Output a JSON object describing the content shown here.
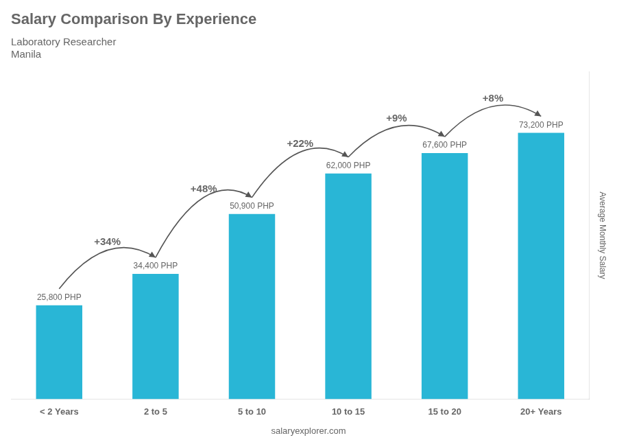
{
  "chart_data": {
    "type": "bar",
    "title": "Salary Comparison By Experience",
    "subtitle": [
      "Laboratory Researcher",
      "Manila"
    ],
    "categories": [
      "< 2 Years",
      "2 to 5",
      "5 to 10",
      "10 to 15",
      "15 to 20",
      "20+ Years"
    ],
    "values": [
      25800,
      34400,
      50900,
      62000,
      67600,
      73200
    ],
    "value_labels": [
      "25,800 PHP",
      "34,400 PHP",
      "50,900 PHP",
      "62,000 PHP",
      "67,600 PHP",
      "73,200 PHP"
    ],
    "data_labels": true,
    "annotations": [
      "+34%",
      "+48%",
      "+22%",
      "+9%",
      "+8%"
    ],
    "ylabel": "Average Monthly Salary",
    "footer": "salaryexplorer.com",
    "color": "#29b6d6",
    "ylim": [
      0,
      90000
    ],
    "grid": false,
    "tick_labels": "x"
  }
}
